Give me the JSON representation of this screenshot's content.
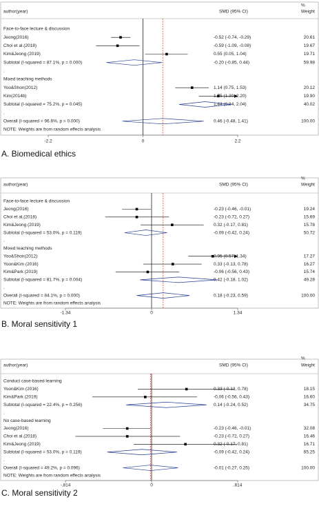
{
  "chart_data": [
    {
      "type": "forest",
      "caption": "A. Biomedical ethics",
      "header": {
        "weight_unit": "%",
        "study": "author(year)",
        "effect": "SMD (95% CI)",
        "weight": "Weight"
      },
      "xlim": [
        -2.2,
        2.2
      ],
      "xticks": [
        -2.2,
        0,
        2.2
      ],
      "groups": [
        {
          "name": "Face-to-face lecture & discussion",
          "rows": [
            {
              "label": "Jeong(2016)",
              "estimate": -0.52,
              "ci": [
                -0.74,
                -0.29
              ],
              "ci_label": "-0.52 (-0.74, -0.29)",
              "weight": "20.61"
            },
            {
              "label": "Choi et al.(2018)",
              "estimate": -0.59,
              "ci": [
                -1.09,
                -0.08
              ],
              "ci_label": "-0.59 (-1.09, -0.08)",
              "weight": "19.67"
            },
            {
              "label": "Kim&Jeong (2019)",
              "estimate": 0.55,
              "ci": [
                0.05,
                1.04
              ],
              "ci_label": "0.55 (0.05, 1.04)",
              "weight": "19.71"
            }
          ],
          "subtotal": {
            "label": "Subtotal  (I-squared = 87.1%, p = 0.000)",
            "estimate": -0.2,
            "ci": [
              -0.85,
              0.44
            ],
            "ci_label": "-0.20 (-0.85, 0.44)",
            "weight": "59.98"
          },
          "spacer": "."
        },
        {
          "name": "Mixed teaching methods",
          "rows": [
            {
              "label": "Yoo&Shon(2012)",
              "estimate": 1.14,
              "ci": [
                0.75,
                1.53
              ],
              "ci_label": "1.14 (0.75, 1.53)",
              "weight": "20.12"
            },
            {
              "label": "Kim(2014b)",
              "estimate": 1.75,
              "ci": [
                1.3,
                2.2
              ],
              "ci_label": "1.75 (1.30, 2.20)",
              "weight": "19.90"
            }
          ],
          "subtotal": {
            "label": "Subtotal  (I-squared = 75.2%, p = 0.045)",
            "estimate": 1.44,
            "ci": [
              0.84,
              2.04
            ],
            "ci_label": "1.44 (0.84, 2.04)",
            "weight": "40.02"
          },
          "spacer": "."
        }
      ],
      "overall": {
        "label": "Overall  (I-squared = 96.6%, p = 0.000)",
        "estimate": 0.46,
        "ci": [
          -0.48,
          1.41
        ],
        "ci_label": "0.46 (-0.48, 1.41)",
        "weight": "100.00"
      },
      "note": "NOTE: Weights are from random effects analysis"
    },
    {
      "type": "forest",
      "caption": "B. Moral sensitivity 1",
      "header": {
        "weight_unit": "%",
        "study": "author(year)",
        "effect": "SMD (95% CI)",
        "weight": "Weight"
      },
      "xlim": [
        -1.34,
        1.34
      ],
      "xticks": [
        -1.34,
        0,
        1.34
      ],
      "groups": [
        {
          "name": "Face-to-face lecture & discussion",
          "rows": [
            {
              "label": "Jeong(2016)",
              "estimate": -0.23,
              "ci": [
                -0.46,
                -0.01
              ],
              "ci_label": "-0.23 (-0.46, -0.01)",
              "weight": "19.24"
            },
            {
              "label": "Choi et al.(2018)",
              "estimate": -0.23,
              "ci": [
                -0.72,
                0.27
              ],
              "ci_label": "-0.23 (-0.72, 0.27)",
              "weight": "15.69"
            },
            {
              "label": "Kim&Jeong (2019)",
              "estimate": 0.32,
              "ci": [
                -0.17,
                0.81
              ],
              "ci_label": "0.32 (-0.17, 0.81)",
              "weight": "15.78"
            }
          ],
          "subtotal": {
            "label": "Subtotal  (I-squared = 53.0%, p = 0.119)",
            "estimate": -0.09,
            "ci": [
              -0.42,
              0.24
            ],
            "ci_label": "-0.09 (-0.42, 0.24)",
            "weight": "50.72"
          },
          "spacer": "."
        },
        {
          "name": "Mixed teaching methods",
          "rows": [
            {
              "label": "Yoo&Shon(2012)",
              "estimate": 0.95,
              "ci": [
                0.57,
                1.34
              ],
              "ci_label": "0.95 (0.57, 1.34)",
              "weight": "17.27"
            },
            {
              "label": "Yoon&Kim (2016)",
              "estimate": 0.33,
              "ci": [
                -0.13,
                0.78
              ],
              "ci_label": "0.33 (-0.13, 0.78)",
              "weight": "16.27"
            },
            {
              "label": "Kim&Park (2019)",
              "estimate": -0.06,
              "ci": [
                -0.56,
                0.43
              ],
              "ci_label": "-0.06 (-0.56, 0.43)",
              "weight": "15.74"
            }
          ],
          "subtotal": {
            "label": "Subtotal  (I-squared = 81.7%, p = 0.004)",
            "estimate": 0.42,
            "ci": [
              -0.18,
              1.02
            ],
            "ci_label": "0.42 (-0.18, 1.02)",
            "weight": "49.28"
          },
          "spacer": "."
        }
      ],
      "overall": {
        "label": "Overall  (I-squared = 84.1%, p = 0.000)",
        "estimate": 0.18,
        "ci": [
          -0.23,
          0.59
        ],
        "ci_label": "0.18 (-0.23, 0.59)",
        "weight": "100.00"
      },
      "note": "NOTE: Weights are from random effects analysis"
    },
    {
      "type": "forest",
      "caption": "C. Moral sensitivity 2",
      "header": {
        "weight_unit": "%",
        "study": "author(year)",
        "effect": "SMD (95% CI)",
        "weight": "Weight"
      },
      "xlim": [
        -0.814,
        0.814
      ],
      "xticks": [
        {
          "value": -0.814,
          "label": "-.814"
        },
        0,
        {
          "value": 0.814,
          "label": ".814"
        }
      ],
      "groups": [
        {
          "name": "Conduct case-based learning",
          "rows": [
            {
              "label": "Yoon&Kim (2016)",
              "estimate": 0.33,
              "ci": [
                -0.13,
                0.78
              ],
              "ci_label": "0.33 (-0.13, 0.78)",
              "weight": "18.15"
            },
            {
              "label": "Kim&Park (2019)",
              "estimate": -0.06,
              "ci": [
                -0.56,
                0.43
              ],
              "ci_label": "-0.06 (-0.56, 0.43)",
              "weight": "16.60"
            }
          ],
          "subtotal": {
            "label": "Subtotal  (I-squared = 22.4%, p = 0.256)",
            "estimate": 0.14,
            "ci": [
              -0.24,
              0.52
            ],
            "ci_label": "0.14 (-0.24, 0.52)",
            "weight": "34.75"
          },
          "spacer": "."
        },
        {
          "name": "No case-based learning",
          "rows": [
            {
              "label": "Jeong(2016)",
              "estimate": -0.23,
              "ci": [
                -0.46,
                -0.01
              ],
              "ci_label": "-0.23 (-0.46, -0.01)",
              "weight": "32.08"
            },
            {
              "label": "Choi et al.(2018)",
              "estimate": -0.23,
              "ci": [
                -0.72,
                0.27
              ],
              "ci_label": "-0.23 (-0.72, 0.27)",
              "weight": "16.46"
            },
            {
              "label": "Kim&Jeong (2019)",
              "estimate": 0.32,
              "ci": [
                -0.17,
                0.81
              ],
              "ci_label": "0.32 (-0.17, 0.81)",
              "weight": "16.71"
            }
          ],
          "subtotal": {
            "label": "Subtotal  (I-squared = 53.0%, p = 0.119)",
            "estimate": -0.09,
            "ci": [
              -0.42,
              0.24
            ],
            "ci_label": "-0.09 (-0.42, 0.24)",
            "weight": "65.25"
          },
          "spacer": "."
        }
      ],
      "overall": {
        "label": "Overall  (I-squared = 49.2%, p = 0.096)",
        "estimate": -0.01,
        "ci": [
          -0.27,
          0.25
        ],
        "ci_label": "-0.01 (-0.27, 0.25)",
        "weight": "100.00"
      },
      "note": "NOTE: Weights are from random effects analysis"
    }
  ]
}
